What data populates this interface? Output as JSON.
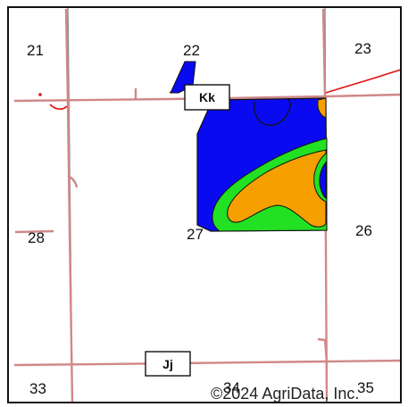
{
  "map": {
    "sections": {
      "s21": "21",
      "s22": "22",
      "s23": "23",
      "s26": "26",
      "s27": "27",
      "s28": "28",
      "s33": "33",
      "s34": "34",
      "s35": "35"
    },
    "road_labels": {
      "kk": "Kk",
      "jj": "Jj"
    },
    "copyright": "©2024 AgriData, Inc.",
    "colors": {
      "zone_blue": "#0a0af0",
      "zone_green": "#22e022",
      "zone_orange": "#f5a000",
      "road": "#d08888",
      "section_line": "#8a8a8a",
      "stream": "#e01010",
      "border": "#111111"
    }
  }
}
